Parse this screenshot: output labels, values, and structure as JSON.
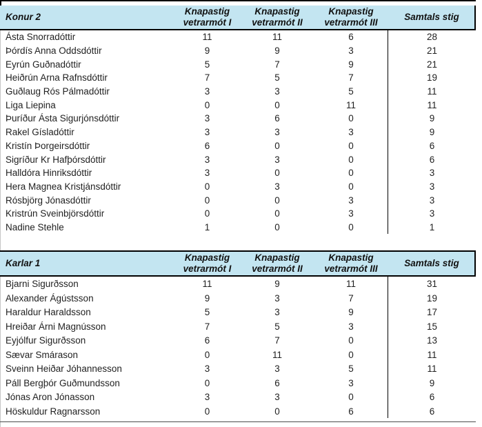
{
  "colors": {
    "header_band": "#c3e5f1",
    "border": "#000000",
    "text": "#1a1a1a"
  },
  "tables": [
    {
      "group": "Konur 2",
      "columns": [
        {
          "line1": "Knapastig",
          "line2": "vetrarmót I"
        },
        {
          "line1": "Knapastig",
          "line2": "vetrarmót II"
        },
        {
          "line1": "Knapastig",
          "line2": "vetrarmót III"
        },
        {
          "label": "Samtals stig"
        }
      ],
      "rows": [
        {
          "name": "Ásta Snorradóttir",
          "scores": [
            11,
            11,
            6
          ],
          "total": 28
        },
        {
          "name": "Þórdís Anna Oddsdóttir",
          "scores": [
            9,
            9,
            3
          ],
          "total": 21
        },
        {
          "name": "Eyrún Guðnadóttir",
          "scores": [
            5,
            7,
            9
          ],
          "total": 21
        },
        {
          "name": "Heiðrún Arna Rafnsdóttir",
          "scores": [
            7,
            5,
            7
          ],
          "total": 19
        },
        {
          "name": "Guðlaug Rós Pálmadóttir",
          "scores": [
            3,
            3,
            5
          ],
          "total": 11
        },
        {
          "name": "Liga Liepina",
          "scores": [
            0,
            0,
            11
          ],
          "total": 11
        },
        {
          "name": "Þuríður Ásta Sigurjónsdóttir",
          "scores": [
            3,
            6,
            0
          ],
          "total": 9
        },
        {
          "name": "Rakel Gísladóttir",
          "scores": [
            3,
            3,
            3
          ],
          "total": 9
        },
        {
          "name": "Kristín Þorgeirsdóttir",
          "scores": [
            6,
            0,
            0
          ],
          "total": 6
        },
        {
          "name": "Sigríður Kr Hafþórsdóttir",
          "scores": [
            3,
            3,
            0
          ],
          "total": 6
        },
        {
          "name": "Halldóra Hinriksdóttir",
          "scores": [
            3,
            0,
            0
          ],
          "total": 3
        },
        {
          "name": "Hera Magnea Kristjánsdóttir",
          "scores": [
            0,
            3,
            0
          ],
          "total": 3
        },
        {
          "name": "Rósbjörg Jónasdóttir",
          "scores": [
            0,
            0,
            3
          ],
          "total": 3
        },
        {
          "name": "Kristrún Sveinbjörsdóttir",
          "scores": [
            0,
            0,
            3
          ],
          "total": 3
        },
        {
          "name": "Nadine Stehle",
          "scores": [
            1,
            0,
            0
          ],
          "total": 1
        }
      ]
    },
    {
      "group": "Karlar 1",
      "columns": [
        {
          "line1": "Knapastig",
          "line2": "vetrarmót I"
        },
        {
          "line1": "Knapastig",
          "line2": "vetrarmót II"
        },
        {
          "line1": "Knapastig",
          "line2": "vetrarmót III"
        },
        {
          "label": "Samtals stig"
        }
      ],
      "rows": [
        {
          "name": "Bjarni Sigurðsson",
          "scores": [
            11,
            9,
            11
          ],
          "total": 31
        },
        {
          "name": "Alexander Ágústsson",
          "scores": [
            9,
            3,
            7
          ],
          "total": 19
        },
        {
          "name": "Haraldur Haraldsson",
          "scores": [
            5,
            3,
            9
          ],
          "total": 17
        },
        {
          "name": "Hreiðar Árni Magnússon",
          "scores": [
            7,
            5,
            3
          ],
          "total": 15
        },
        {
          "name": "Eyjólfur Sigurðsson",
          "scores": [
            6,
            7,
            0
          ],
          "total": 13
        },
        {
          "name": "Sævar Smárason",
          "scores": [
            0,
            11,
            0
          ],
          "total": 11
        },
        {
          "name": "Sveinn Heiðar Jóhannesson",
          "scores": [
            3,
            3,
            5
          ],
          "total": 11
        },
        {
          "name": "Páll Bergþór Guðmundsson",
          "scores": [
            0,
            6,
            3
          ],
          "total": 9
        },
        {
          "name": "Jónas Aron Jónasson",
          "scores": [
            3,
            3,
            0
          ],
          "total": 6
        },
        {
          "name": "Höskuldur Ragnarsson",
          "scores": [
            0,
            0,
            6
          ],
          "total": 6
        }
      ]
    }
  ]
}
